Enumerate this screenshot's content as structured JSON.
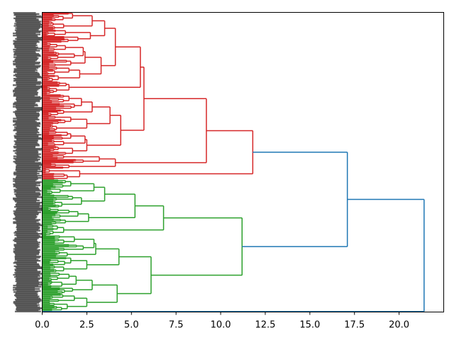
{
  "chart_data": {
    "type": "dendrogram",
    "orientation": "left",
    "title": "",
    "xlabel": "",
    "ylabel": "",
    "xlim": [
      0,
      22.5
    ],
    "xticks": [
      0,
      2.5,
      5,
      7.5,
      10,
      12.5,
      15,
      17.5,
      20
    ],
    "xtick_labels": [
      "0.0",
      "2.5",
      "5.0",
      "7.5",
      "10.0",
      "12.5",
      "15.0",
      "17.5",
      "20.0"
    ],
    "grid": false,
    "colors": {
      "above_threshold": "#1f77b4",
      "cluster1": "#d62728",
      "cluster2": "#2ca02c"
    },
    "tree": {
      "h": 21.4,
      "color": "above_threshold",
      "c": [
        {
          "h": 17.1,
          "color": "above_threshold",
          "c": [
            {
              "h": 11.8,
              "color": "cluster1",
              "c": [
                {
                  "h": 9.2,
                  "c": [
                    {
                      "h": 5.7,
                      "c": [
                        {
                          "h": 5.5,
                          "c": [
                            {
                              "h": 4.1,
                              "c": [
                                {
                                  "h": 3.5,
                                  "c": [
                                    {
                                      "h": 2.8,
                                      "c": [
                                        {
                                          "n": 8,
                                          "h": 1.7
                                        },
                                        {
                                          "n": 8,
                                          "h": 1.2
                                        }
                                      ]
                                    },
                                    {
                                      "h": 2.7,
                                      "c": [
                                        {
                                          "n": 6,
                                          "h": 1.3
                                        },
                                        {
                                          "n": 6,
                                          "h": 2.0
                                        }
                                      ]
                                    }
                                  ]
                                },
                                {
                                  "h": 3.3,
                                  "c": [
                                    {
                                      "h": 2.4,
                                      "c": [
                                        {
                                          "h": 2.3,
                                          "c": [
                                            {
                                              "n": 8,
                                              "h": 1.3
                                            },
                                            {
                                              "n": 8,
                                              "h": 1.8
                                            }
                                          ]
                                        },
                                        {
                                          "n": 6,
                                          "h": 1.6
                                        }
                                      ]
                                    },
                                    {
                                      "h": 2.1,
                                      "c": [
                                        {
                                          "n": 8,
                                          "h": 1.5
                                        },
                                        {
                                          "n": 6,
                                          "h": 0.9
                                        }
                                      ]
                                    }
                                  ]
                                }
                              ]
                            },
                            {
                              "n": 12,
                              "h": 1.5
                            }
                          ]
                        },
                        {
                          "h": 4.4,
                          "c": [
                            {
                              "h": 3.8,
                              "c": [
                                {
                                  "h": 2.8,
                                  "c": [
                                    {
                                      "h": 2.2,
                                      "c": [
                                        {
                                          "n": 8,
                                          "h": 1.5
                                        },
                                        {
                                          "n": 6,
                                          "h": 1.8
                                        }
                                      ]
                                    },
                                    {
                                      "n": 6,
                                      "h": 1.2
                                    }
                                  ]
                                },
                                {
                                  "h": 2.5,
                                  "c": [
                                    {
                                      "n": 8,
                                      "h": 1.6
                                    },
                                    {
                                      "n": 6,
                                      "h": 0.8
                                    }
                                  ]
                                }
                              ]
                            },
                            {
                              "h": 2.5,
                              "c": [
                                {
                                  "h": 2.4,
                                  "c": [
                                    {
                                      "n": 8,
                                      "h": 1.6
                                    },
                                    {
                                      "n": 6,
                                      "h": 1.2
                                    }
                                  ]
                                },
                                {
                                  "n": 8,
                                  "h": 1.7
                                }
                              ]
                            }
                          ]
                        }
                      ]
                    },
                    {
                      "h": 4.1,
                      "c": [
                        {
                          "h": 3.2,
                          "c": [
                            {
                              "n": 4,
                              "h": 1.2
                            },
                            {
                              "n": 4,
                              "h": 2.3
                            }
                          ]
                        },
                        {
                          "n": 5,
                          "h": 1.5
                        }
                      ]
                    }
                  ]
                },
                {
                  "h": 2.1,
                  "c": [
                    {
                      "n": 4,
                      "h": 0.4
                    },
                    {
                      "n": 6,
                      "h": 1.4
                    }
                  ]
                }
              ]
            },
            {
              "h": 11.2,
              "color": "cluster2",
              "c": [
                {
                  "h": 6.8,
                  "c": [
                    {
                      "h": 5.2,
                      "c": [
                        {
                          "h": 3.5,
                          "c": [
                            {
                              "h": 2.9,
                              "c": [
                                {
                                  "n": 8,
                                  "h": 1.6
                                },
                                {
                                  "n": 6,
                                  "h": 1.0
                                }
                              ]
                            },
                            {
                              "h": 2.2,
                              "c": [
                                {
                                  "n": 6,
                                  "h": 1.7
                                },
                                {
                                  "n": 6,
                                  "h": 1.1
                                }
                              ]
                            }
                          ]
                        },
                        {
                          "h": 2.6,
                          "c": [
                            {
                              "h": 2.0,
                              "c": [
                                {
                                  "n": 6,
                                  "h": 1.5
                                },
                                {
                                  "n": 4,
                                  "h": 1.0
                                }
                              ]
                            },
                            {
                              "n": 6,
                              "h": 1.3
                            }
                          ]
                        }
                      ]
                    },
                    {
                      "n": 10,
                      "h": 1.2
                    }
                  ]
                },
                {
                  "h": 6.1,
                  "c": [
                    {
                      "h": 4.3,
                      "c": [
                        {
                          "h": 3.0,
                          "c": [
                            {
                              "h": 2.9,
                              "c": [
                                {
                                  "n": 8,
                                  "h": 1.8
                                },
                                {
                                  "n": 6,
                                  "h": 2.3
                                }
                              ]
                            },
                            {
                              "n": 6,
                              "h": 1.4
                            }
                          ]
                        },
                        {
                          "h": 2.5,
                          "c": [
                            {
                              "n": 8,
                              "h": 1.6
                            },
                            {
                              "n": 6,
                              "h": 1.2
                            }
                          ]
                        }
                      ]
                    },
                    {
                      "h": 4.2,
                      "c": [
                        {
                          "h": 2.8,
                          "c": [
                            {
                              "h": 1.9,
                              "c": [
                                {
                                  "n": 8,
                                  "h": 1.5
                                },
                                {
                                  "n": 6,
                                  "h": 1.1
                                }
                              ]
                            },
                            {
                              "n": 6,
                              "h": 1.7
                            }
                          ]
                        },
                        {
                          "h": 2.5,
                          "c": [
                            {
                              "n": 8,
                              "h": 1.8
                            },
                            {
                              "n": 8,
                              "h": 1.4
                            }
                          ]
                        }
                      ]
                    }
                  ]
                }
              ]
            }
          ]
        },
        {
          "n": 1,
          "h": 0
        }
      ]
    }
  }
}
